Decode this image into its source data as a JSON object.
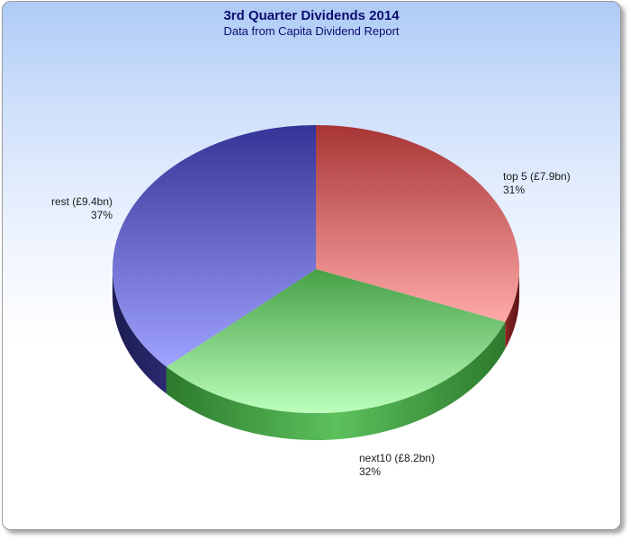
{
  "chart_data": {
    "type": "pie",
    "title": "3rd Quarter Dividends 2014",
    "subtitle": "Data from Capita Dividend Report",
    "slices": [
      {
        "label": "top 5 (£7.9bn)",
        "percent_label": "31%",
        "value": 7.9,
        "color_light": "#ffa9a9",
        "color_dark": "#b63a3a",
        "side": "#6f1c1c"
      },
      {
        "label": "next10 (£8.2bn)",
        "percent_label": "32%",
        "value": 8.2,
        "color_light": "#b4ffb4",
        "color_dark": "#4fae4f",
        "side": "#2f7a2f"
      },
      {
        "label": "rest (£9.4bn)",
        "percent_label": "37%",
        "value": 9.4,
        "color_light": "#9a9cff",
        "color_dark": "#3c3ca8",
        "side": "#23235e"
      }
    ]
  }
}
